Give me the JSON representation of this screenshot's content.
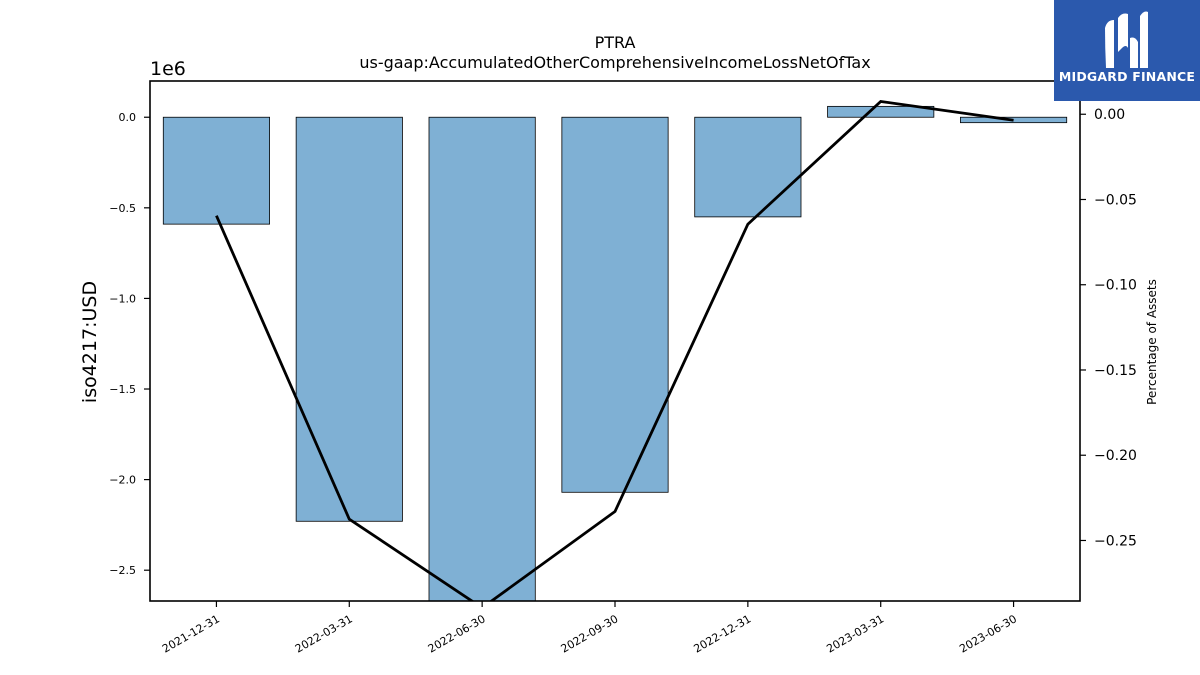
{
  "chart_data": {
    "type": "bar",
    "title": "PTRA",
    "subtitle": "us-gaap:AccumulatedOtherComprehensiveIncomeLossNetOfTax",
    "ylabel": "iso4217:USD",
    "y2label": "Percentage of Assets",
    "y_offset_label": "1e6",
    "categories": [
      "2021-12-31",
      "2022-03-31",
      "2022-06-30",
      "2022-09-30",
      "2022-12-31",
      "2023-03-31",
      "2023-06-30"
    ],
    "series": [
      {
        "values": [
          -590000,
          -2230000,
          -2680000,
          -2070000,
          -550000,
          60000,
          -30000
        ]
      },
      {
        "values": [
          -0.0595,
          -0.2375,
          -0.2895,
          -0.233,
          -0.0645,
          0.0075,
          -0.0035
        ]
      }
    ],
    "ylim": [
      -2670000,
      200000
    ],
    "y2lim": [
      -0.2855,
      0.0195
    ],
    "yticks": [
      0.0,
      -0.5,
      -1.0,
      -1.5,
      -2.0,
      -2.5
    ],
    "ytick_labels": [
      "0.0",
      "−0.5",
      "−1.0",
      "−1.5",
      "−2.0",
      "−2.5"
    ],
    "y2ticks": [
      0.0,
      -0.05,
      -0.1,
      -0.15,
      -0.2,
      -0.25
    ],
    "y2tick_labels": [
      "0.00",
      "−0.05",
      "−0.10",
      "−0.15",
      "−0.20",
      "−0.25"
    ],
    "grid": false,
    "bar_color": "#7fb0d4",
    "line_color": "#000000"
  },
  "logo": {
    "text": "MIDGARD FINANCE",
    "color": "#2b59ad"
  }
}
